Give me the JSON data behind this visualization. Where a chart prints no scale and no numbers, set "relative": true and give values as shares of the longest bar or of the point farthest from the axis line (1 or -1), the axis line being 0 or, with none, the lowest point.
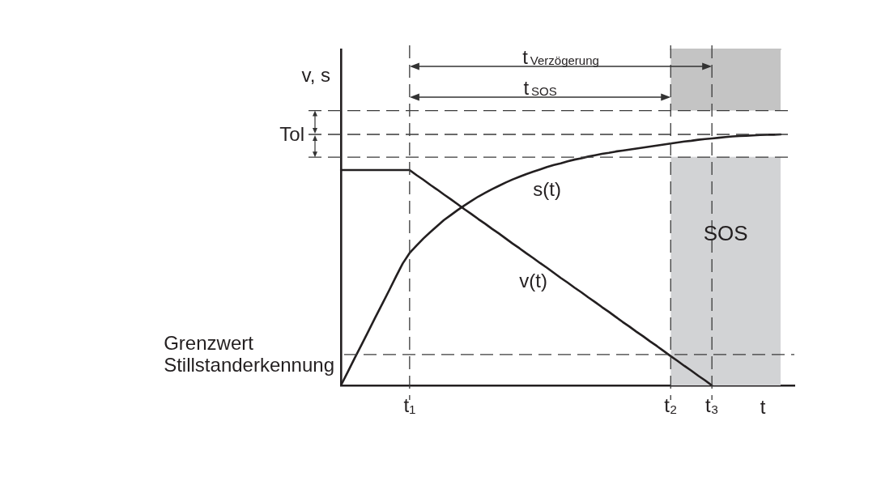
{
  "chart_data": {
    "type": "line",
    "relative": true,
    "xlabel": "t",
    "ylabel": "v, s",
    "categories": [
      null,
      null,
      null,
      null,
      null,
      null,
      null,
      null,
      null,
      null,
      "t₁",
      null,
      null,
      null,
      null,
      null,
      null,
      null,
      null,
      null,
      null,
      null,
      null,
      null,
      null,
      null,
      null,
      null,
      null,
      null,
      null,
      null,
      null,
      null,
      null,
      null,
      null,
      null,
      null,
      null,
      null,
      null,
      null,
      null,
      null,
      null,
      null,
      null,
      "t₂",
      null,
      null,
      null,
      null,
      null,
      "t₃",
      null,
      null,
      null,
      null,
      null,
      null,
      null,
      null,
      null,
      null,
      null,
      null
    ],
    "series": [
      {
        "name": "s(t)",
        "color": "#231f20",
        "values": [
          0,
          0.04,
          0.081,
          0.121,
          0.161,
          0.202,
          0.242,
          0.282,
          0.323,
          0.363,
          0.394,
          0.416,
          0.437,
          0.456,
          0.474,
          0.492,
          0.507,
          0.522,
          0.536,
          0.549,
          0.562,
          0.573,
          0.584,
          0.594,
          0.604,
          0.613,
          0.621,
          0.629,
          0.636,
          0.643,
          0.65,
          0.656,
          0.661,
          0.667,
          0.672,
          0.676,
          0.681,
          0.685,
          0.689,
          0.692,
          0.696,
          0.699,
          0.702,
          0.705,
          0.708,
          0.711,
          0.714,
          0.717,
          0.72,
          0.723,
          0.726,
          0.728,
          0.731,
          0.733,
          0.735,
          0.737,
          0.739,
          0.741,
          0.742,
          0.743,
          0.744,
          0.745,
          0.746,
          0.746,
          0.747,
          null,
          null
        ]
      },
      {
        "name": "v(t)",
        "color": "#231f20",
        "values": [
          0.641,
          0.641,
          0.641,
          0.641,
          0.641,
          0.641,
          0.641,
          0.641,
          0.641,
          0.641,
          0.641,
          0.626,
          0.612,
          0.597,
          0.583,
          0.568,
          0.554,
          0.539,
          0.524,
          0.51,
          0.495,
          0.481,
          0.466,
          0.452,
          0.437,
          0.422,
          0.408,
          0.393,
          0.379,
          0.364,
          0.35,
          0.335,
          0.32,
          0.306,
          0.291,
          0.277,
          0.262,
          0.248,
          0.233,
          0.219,
          0.204,
          0.189,
          0.175,
          0.16,
          0.146,
          0.131,
          0.117,
          0.102,
          0.087,
          0.073,
          0.058,
          0.044,
          0.029,
          0.015,
          0,
          null,
          null,
          null,
          null,
          null,
          null,
          null,
          null,
          null,
          null,
          null,
          null
        ]
      },
      {
        "name": "SOS",
        "type": "area",
        "color": "#d2d3d5",
        "values": [
          null,
          null,
          null,
          null,
          null,
          null,
          null,
          null,
          null,
          null,
          null,
          null,
          null,
          null,
          null,
          null,
          null,
          null,
          null,
          null,
          null,
          null,
          null,
          null,
          null,
          null,
          null,
          null,
          null,
          null,
          null,
          null,
          null,
          null,
          null,
          null,
          null,
          null,
          null,
          null,
          null,
          null,
          null,
          null,
          null,
          null,
          null,
          null,
          0.679,
          0.679,
          0.679,
          0.679,
          0.679,
          0.679,
          0.679,
          0.679,
          0.679,
          0.679,
          0.679,
          0.679,
          0.679,
          0.679,
          0.679,
          0.679,
          0.679,
          null,
          null
        ]
      },
      {
        "type": "line",
        "color": "#c4c4c4",
        "values": [
          null,
          null,
          null,
          null,
          null,
          null,
          null,
          null,
          null,
          null,
          null,
          null,
          null,
          null,
          null,
          null,
          null,
          null,
          null,
          null,
          null,
          null,
          null,
          null,
          null,
          null,
          null,
          null,
          null,
          null,
          null,
          null,
          null,
          null,
          null,
          null,
          null,
          null,
          null,
          null,
          null,
          null,
          null,
          null,
          null,
          null,
          null,
          null,
          1,
          1,
          1,
          1,
          1,
          1,
          1,
          1,
          1,
          1,
          1,
          1,
          1,
          1,
          1,
          1,
          1,
          null,
          null
        ],
        "lower": [
          null,
          null,
          null,
          null,
          null,
          null,
          null,
          null,
          null,
          null,
          null,
          null,
          null,
          null,
          null,
          null,
          null,
          null,
          null,
          null,
          null,
          null,
          null,
          null,
          null,
          null,
          null,
          null,
          null,
          null,
          null,
          null,
          null,
          null,
          null,
          null,
          null,
          null,
          null,
          null,
          null,
          null,
          null,
          null,
          null,
          null,
          null,
          null,
          0.818,
          0.818,
          0.818,
          0.818,
          0.818,
          0.818,
          0.818,
          0.818,
          0.818,
          0.818,
          0.818,
          0.818,
          0.818,
          0.818,
          0.818,
          0.818,
          0.818,
          null,
          null
        ],
        "upper": [
          null,
          null,
          null,
          null,
          null,
          null,
          null,
          null,
          null,
          null,
          null,
          null,
          null,
          null,
          null,
          null,
          null,
          null,
          null,
          null,
          null,
          null,
          null,
          null,
          null,
          null,
          null,
          null,
          null,
          null,
          null,
          null,
          null,
          null,
          null,
          null,
          null,
          null,
          null,
          null,
          null,
          null,
          null,
          null,
          null,
          null,
          null,
          null,
          1,
          1,
          1,
          1,
          1,
          1,
          1,
          1,
          1,
          1,
          1,
          1,
          1,
          1,
          1,
          1,
          1,
          null,
          null
        ]
      }
    ],
    "ref_lines": [
      {
        "axis": "y",
        "value": 0.818,
        "line_style": "dashed"
      },
      {
        "axis": "y",
        "value": 0.747,
        "line_style": "dashed"
      },
      {
        "axis": "y",
        "value": 0.679,
        "line_style": "dashed"
      },
      {
        "axis": "y",
        "value": 0.092,
        "label": "Grenzwert Stillstanderkennung",
        "line_style": "dashed"
      },
      {
        "axis": "x",
        "value": "t₁",
        "line_style": "dashed"
      },
      {
        "axis": "x",
        "value": "t₂",
        "line_style": "dashed"
      },
      {
        "axis": "x",
        "value": "t₃",
        "line_style": "dashed"
      }
    ],
    "annotations": [
      "Tol",
      "t$_{Verzögerung}$",
      "t$_{SOS}$"
    ]
  }
}
